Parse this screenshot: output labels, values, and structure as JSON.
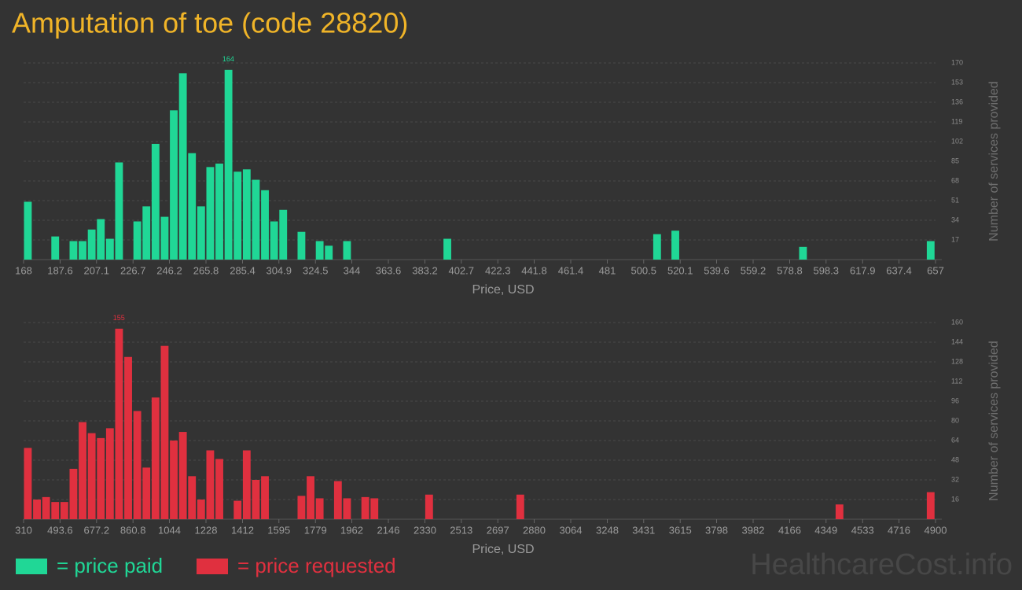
{
  "title": "Amputation of toe (code 28820)",
  "watermark": "HealthcareCost.info",
  "chart_data": [
    {
      "type": "histogram",
      "name": "= price paid",
      "color": "#20d796",
      "xlabel": "Price, USD",
      "ylabel": "Number of services provided",
      "bins": [
        168,
        172.89,
        177.78,
        182.67,
        187.56,
        192.45,
        197.34,
        202.23,
        207.12,
        212.01,
        216.9,
        221.79,
        226.68,
        231.57,
        236.46,
        241.35,
        246.24,
        251.13,
        256.02,
        260.91,
        265.8,
        270.69,
        275.58,
        280.47,
        285.36,
        290.25,
        295.14,
        300.03,
        304.92,
        309.81,
        314.7,
        319.59,
        324.48,
        329.37,
        334.26,
        339.15,
        344.04,
        348.93,
        353.82,
        358.71,
        363.6,
        368.49,
        373.38,
        378.27,
        383.16,
        388.05,
        392.94,
        397.83,
        402.72,
        407.61,
        412.5,
        417.39,
        422.28,
        427.17,
        432.06,
        436.95,
        441.84,
        446.73,
        451.62,
        456.51,
        461.4,
        466.29,
        471.18,
        476.07,
        480.96,
        485.85,
        490.74,
        495.63,
        500.52,
        505.41,
        510.3,
        515.19,
        520.08,
        524.97,
        529.86,
        534.75,
        539.64,
        544.53,
        549.42,
        554.31,
        559.2,
        564.09,
        568.98,
        573.87,
        578.76,
        583.65,
        588.54,
        593.43,
        598.32,
        603.21,
        608.1,
        612.99,
        617.88,
        622.77,
        627.66,
        632.55,
        637.44,
        642.33,
        647.22,
        652.11,
        657
      ],
      "values": [
        50,
        0,
        0,
        20,
        0,
        16,
        16,
        26,
        35,
        18,
        84,
        0,
        33,
        46,
        100,
        37,
        129,
        161,
        92,
        46,
        80,
        83,
        164,
        76,
        78,
        69,
        60,
        33,
        43,
        0,
        24,
        0,
        16,
        12,
        0,
        16,
        0,
        0,
        0,
        0,
        0,
        0,
        0,
        0,
        0,
        0,
        18,
        0,
        0,
        0,
        0,
        0,
        0,
        0,
        0,
        0,
        0,
        0,
        0,
        0,
        0,
        0,
        0,
        0,
        0,
        0,
        0,
        0,
        0,
        22,
        0,
        25,
        0,
        0,
        0,
        0,
        0,
        0,
        0,
        0,
        0,
        0,
        0,
        0,
        0,
        11,
        0,
        0,
        0,
        0,
        0,
        0,
        0,
        0,
        0,
        0,
        0,
        0,
        0,
        16
      ],
      "xlim": [
        168,
        657
      ],
      "xticks": [
        168,
        187.6,
        207.1,
        226.7,
        246.2,
        265.8,
        285.4,
        304.9,
        324.5,
        344,
        363.6,
        383.2,
        402.7,
        422.3,
        441.8,
        461.4,
        481,
        500.5,
        520.1,
        539.6,
        559.2,
        578.8,
        598.3,
        617.9,
        637.4,
        657
      ],
      "ylim": [
        0,
        170
      ],
      "yticks": [
        17,
        34,
        51,
        68,
        85,
        102,
        119,
        136,
        153,
        170
      ],
      "grid": true
    },
    {
      "type": "histogram",
      "name": "= price requested",
      "color": "#e0303f",
      "xlabel": "Price, USD",
      "ylabel": "Number of services provided",
      "bins": [
        310,
        355.9,
        401.8,
        447.7,
        493.6,
        539.5,
        585.4,
        631.3,
        677.2,
        723.1,
        769,
        814.9,
        860.8,
        906.7,
        952.6,
        998.5,
        1044.4,
        1090.3,
        1136.2,
        1182.1,
        1228,
        1273.9,
        1319.8,
        1365.7,
        1411.6,
        1457.5,
        1503.4,
        1549.3,
        1595.2,
        1641.1,
        1687,
        1732.9,
        1778.8,
        1824.7,
        1870.6,
        1916.5,
        1962.4,
        2008.3,
        2054.2,
        2100.1,
        2146,
        2191.9,
        2237.8,
        2283.7,
        2329.6,
        2375.5,
        2421.4,
        2467.3,
        2513.2,
        2559.1,
        2605,
        2650.9,
        2696.8,
        2742.7,
        2788.6,
        2834.5,
        2880.4,
        2926.3,
        2972.2,
        3018.1,
        3064,
        3109.9,
        3155.8,
        3201.7,
        3247.6,
        3293.5,
        3339.4,
        3385.3,
        3431.2,
        3477.1,
        3523,
        3568.9,
        3614.8,
        3660.7,
        3706.6,
        3752.5,
        3798.4,
        3844.3,
        3890.2,
        3936.1,
        3982,
        4027.9,
        4073.8,
        4119.7,
        4165.6,
        4211.5,
        4257.4,
        4303.3,
        4349.2,
        4395.1,
        4441,
        4486.9,
        4532.8,
        4578.7,
        4624.6,
        4670.5,
        4716.4,
        4762.3,
        4808.2,
        4854.1,
        4900
      ],
      "values": [
        58,
        16,
        18,
        14,
        14,
        41,
        79,
        70,
        66,
        74,
        155,
        132,
        88,
        42,
        99,
        141,
        64,
        71,
        35,
        16,
        56,
        49,
        0,
        15,
        56,
        32,
        35,
        0,
        0,
        0,
        19,
        35,
        17,
        0,
        31,
        17,
        0,
        18,
        17,
        0,
        0,
        0,
        0,
        0,
        20,
        0,
        0,
        0,
        0,
        0,
        0,
        0,
        0,
        0,
        20,
        0,
        0,
        0,
        0,
        0,
        0,
        0,
        0,
        0,
        0,
        0,
        0,
        0,
        0,
        0,
        0,
        0,
        0,
        0,
        0,
        0,
        0,
        0,
        0,
        0,
        0,
        0,
        0,
        0,
        0,
        0,
        0,
        0,
        0,
        12,
        0,
        0,
        0,
        0,
        0,
        0,
        0,
        0,
        0,
        22
      ],
      "xlim": [
        310,
        4900
      ],
      "xticks": [
        310,
        493.6,
        677.2,
        860.8,
        1044,
        1228,
        1412,
        1595,
        1779,
        1962,
        2146,
        2330,
        2513,
        2697,
        2880,
        3064,
        3248,
        3431,
        3615,
        3798,
        3982,
        4166,
        4349,
        4533,
        4716,
        4900
      ],
      "ylim": [
        0,
        160
      ],
      "yticks": [
        16,
        32,
        48,
        64,
        80,
        96,
        112,
        128,
        144,
        160
      ],
      "grid": true
    }
  ]
}
